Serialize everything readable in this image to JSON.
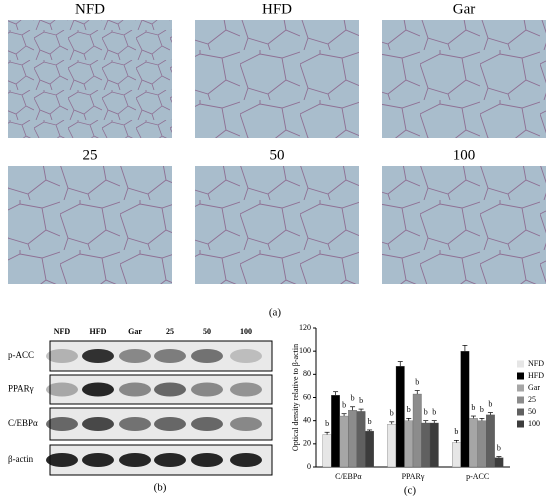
{
  "figure_a": {
    "panels": [
      "NFD",
      "HFD",
      "Gar",
      "25",
      "50",
      "100"
    ],
    "panel_label": "(a)"
  },
  "figure_b": {
    "lanes": [
      "NFD",
      "HFD",
      "Gar",
      "25",
      "50",
      "100"
    ],
    "rows": [
      "p-ACC",
      "PPARγ",
      "C/EBPα",
      "β-actin"
    ],
    "panel_label": "(b)"
  },
  "chart_data": {
    "type": "bar",
    "panel_label": "(c)",
    "y_label": "Optical density relative to β-actin",
    "categories": [
      "C/EBPα",
      "PPARγ",
      "p-ACC"
    ],
    "ylim": [
      0,
      120
    ],
    "yticks": [
      0,
      20,
      40,
      60,
      80,
      100,
      120
    ],
    "legend": "right",
    "series": [
      {
        "name": "NFD",
        "color": "#e6e6e6",
        "values": [
          28,
          37,
          21
        ],
        "errors": [
          2,
          2,
          2
        ],
        "letters": [
          "b",
          "b",
          "b"
        ]
      },
      {
        "name": "HFD",
        "color": "#000000",
        "values": [
          62,
          87,
          100
        ],
        "errors": [
          3,
          4,
          5
        ]
      },
      {
        "name": "Gar",
        "color": "#a6a6a6",
        "values": [
          44,
          40,
          42
        ],
        "errors": [
          2,
          2,
          2
        ],
        "letters": [
          "b",
          "b",
          "b"
        ]
      },
      {
        "name": "25",
        "color": "#8c8c8c",
        "values": [
          49,
          63,
          40
        ],
        "errors": [
          3,
          3,
          2
        ],
        "letters": [
          "b",
          "b",
          "b"
        ]
      },
      {
        "name": "50",
        "color": "#606060",
        "values": [
          48,
          38,
          45
        ],
        "errors": [
          2,
          2,
          2
        ],
        "letters": [
          "b",
          "b",
          "b"
        ]
      },
      {
        "name": "100",
        "color": "#3c3c3c",
        "values": [
          31,
          38,
          8
        ],
        "errors": [
          1,
          2,
          1
        ],
        "letters": [
          "b",
          "b",
          "b"
        ]
      }
    ]
  }
}
